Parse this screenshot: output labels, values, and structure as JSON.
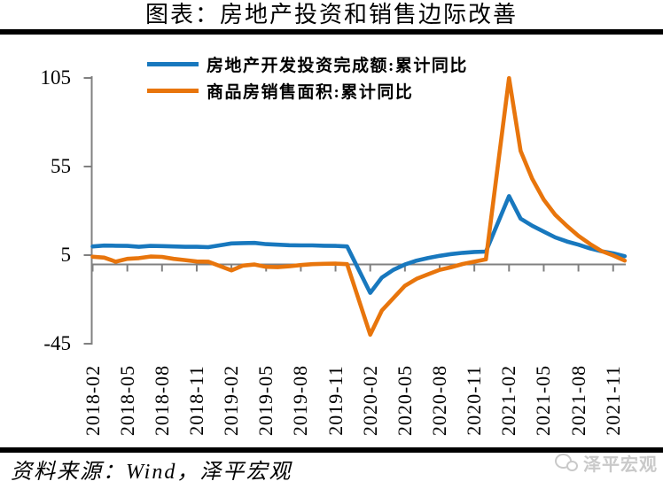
{
  "page": {
    "title": "图表：房地产投资和销售边际改善",
    "source_note": "资料来源：Wind，泽平宏观",
    "watermark_label": "泽平宏观"
  },
  "colors": {
    "investment_blue": "#1878BE",
    "sales_orange": "#E8750C",
    "axis_gray": "#808080",
    "rule_black": "#000000",
    "watermark_gray": "#C9C9C9"
  },
  "chart_data": {
    "type": "line",
    "title": "图表：房地产投资和销售边际改善",
    "xlabel": "",
    "ylabel": "",
    "ylim": [
      -45,
      105
    ],
    "y_ticks": [
      105,
      55,
      5,
      -45
    ],
    "grid": false,
    "legend_position": "top-inside",
    "x_tick_labels": [
      "2018-02",
      "2018-05",
      "2018-08",
      "2018-11",
      "2019-02",
      "2019-05",
      "2019-08",
      "2019-11",
      "2020-02",
      "2020-05",
      "2020-08",
      "2020-11",
      "2021-02",
      "2021-05",
      "2021-08",
      "2021-11"
    ],
    "series": [
      {
        "name": "房地产开发投资完成额:累计同比",
        "color": "#1878BE",
        "points": [
          [
            "2018-02",
            9.9
          ],
          [
            "2018-03",
            10.4
          ],
          [
            "2018-04",
            10.3
          ],
          [
            "2018-05",
            10.2
          ],
          [
            "2018-06",
            9.7
          ],
          [
            "2018-07",
            10.2
          ],
          [
            "2018-08",
            10.1
          ],
          [
            "2018-09",
            9.9
          ],
          [
            "2018-10",
            9.7
          ],
          [
            "2018-11",
            9.7
          ],
          [
            "2018-12",
            9.5
          ],
          [
            "2019-02",
            11.6
          ],
          [
            "2019-03",
            11.8
          ],
          [
            "2019-04",
            11.9
          ],
          [
            "2019-05",
            11.2
          ],
          [
            "2019-06",
            10.9
          ],
          [
            "2019-07",
            10.6
          ],
          [
            "2019-08",
            10.5
          ],
          [
            "2019-09",
            10.5
          ],
          [
            "2019-10",
            10.3
          ],
          [
            "2019-11",
            10.2
          ],
          [
            "2019-12",
            9.9
          ],
          [
            "2020-02",
            -16.3
          ],
          [
            "2020-03",
            -7.7
          ],
          [
            "2020-04",
            -3.3
          ],
          [
            "2020-05",
            -0.3
          ],
          [
            "2020-06",
            1.9
          ],
          [
            "2020-07",
            3.4
          ],
          [
            "2020-08",
            4.6
          ],
          [
            "2020-09",
            5.6
          ],
          [
            "2020-10",
            6.3
          ],
          [
            "2020-11",
            6.8
          ],
          [
            "2020-12",
            7.0
          ],
          [
            "2021-02",
            38.3
          ],
          [
            "2021-03",
            25.6
          ],
          [
            "2021-04",
            21.6
          ],
          [
            "2021-05",
            18.3
          ],
          [
            "2021-06",
            15.0
          ],
          [
            "2021-07",
            12.7
          ],
          [
            "2021-08",
            10.9
          ],
          [
            "2021-09",
            8.8
          ],
          [
            "2021-10",
            7.2
          ],
          [
            "2021-11",
            6.0
          ],
          [
            "2021-12",
            4.4
          ]
        ]
      },
      {
        "name": "商品房销售面积:累计同比",
        "color": "#E8750C",
        "points": [
          [
            "2018-02",
            4.1
          ],
          [
            "2018-03",
            3.6
          ],
          [
            "2018-04",
            1.3
          ],
          [
            "2018-05",
            2.9
          ],
          [
            "2018-06",
            3.3
          ],
          [
            "2018-07",
            4.2
          ],
          [
            "2018-08",
            4.0
          ],
          [
            "2018-09",
            2.9
          ],
          [
            "2018-10",
            2.2
          ],
          [
            "2018-11",
            1.4
          ],
          [
            "2018-12",
            1.3
          ],
          [
            "2019-02",
            -3.6
          ],
          [
            "2019-03",
            -0.9
          ],
          [
            "2019-04",
            -0.3
          ],
          [
            "2019-05",
            -1.6
          ],
          [
            "2019-06",
            -1.8
          ],
          [
            "2019-07",
            -1.3
          ],
          [
            "2019-08",
            -0.6
          ],
          [
            "2019-09",
            -0.1
          ],
          [
            "2019-10",
            0.1
          ],
          [
            "2019-11",
            0.2
          ],
          [
            "2019-12",
            -0.1
          ],
          [
            "2020-02",
            -39.9
          ],
          [
            "2020-03",
            -26.3
          ],
          [
            "2020-04",
            -19.3
          ],
          [
            "2020-05",
            -12.3
          ],
          [
            "2020-06",
            -8.4
          ],
          [
            "2020-07",
            -5.8
          ],
          [
            "2020-08",
            -3.3
          ],
          [
            "2020-09",
            -1.8
          ],
          [
            "2020-10",
            0.0
          ],
          [
            "2020-11",
            1.3
          ],
          [
            "2020-12",
            2.6
          ],
          [
            "2021-02",
            104.9
          ],
          [
            "2021-03",
            63.8
          ],
          [
            "2021-04",
            48.1
          ],
          [
            "2021-05",
            36.3
          ],
          [
            "2021-06",
            27.7
          ],
          [
            "2021-07",
            21.5
          ],
          [
            "2021-08",
            15.9
          ],
          [
            "2021-09",
            11.3
          ],
          [
            "2021-10",
            7.3
          ],
          [
            "2021-11",
            4.8
          ],
          [
            "2021-12",
            1.9
          ]
        ]
      }
    ]
  }
}
